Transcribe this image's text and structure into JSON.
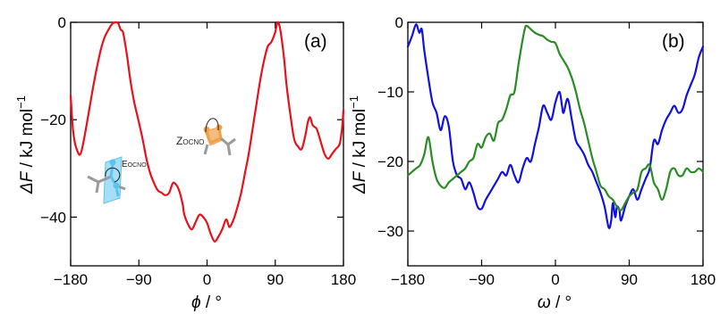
{
  "colors": {
    "red": "#e8101a",
    "blue": "#1010e0",
    "green": "#2a8a24",
    "mol_orange": "#f0a04b",
    "mol_blue": "#5cc2f0",
    "mol_grey": "#9a9a9a"
  },
  "icons": [
    "molecule-e-ocno-icon",
    "molecule-z-ocno-icon"
  ],
  "chart_data": [
    {
      "type": "line",
      "panel_label": "(a)",
      "xlabel_symbol": "ϕ",
      "xlabel_unit": " / °",
      "ylabel_symbol": "ΔF",
      "ylabel_unit": " / kJ mol",
      "ylabel_sup": "−1",
      "xlim": [
        -180,
        180
      ],
      "ylim": [
        -50,
        0
      ],
      "x_ticks": [
        {
          "v": -180,
          "l": "−180"
        },
        {
          "v": -90,
          "l": "−90"
        },
        {
          "v": 0,
          "l": "0"
        },
        {
          "v": 90,
          "l": "90"
        },
        {
          "v": 180,
          "l": "180"
        }
      ],
      "y_ticks": [
        {
          "v": 0,
          "l": "0"
        },
        {
          "v": -20,
          "l": "−20"
        },
        {
          "v": -40,
          "l": "−40"
        }
      ],
      "annotations": [
        {
          "main": "E",
          "sub": "OCNO"
        },
        {
          "main": "Z",
          "sub": "OCNO"
        }
      ],
      "series": [
        {
          "color": "#e8101a",
          "x": [
            -180,
            -177,
            -174,
            -171,
            -168,
            -165,
            -160,
            -155,
            -150,
            -145,
            -140,
            -135,
            -130,
            -125,
            -120,
            -117,
            -114,
            -111,
            -108,
            -105,
            -102,
            -99,
            -96,
            -93,
            -90,
            -85,
            -80,
            -75,
            -70,
            -65,
            -60,
            -55,
            -50,
            -45,
            -40,
            -37,
            -35,
            -32,
            -30,
            -25,
            -20,
            -15,
            -10,
            -5,
            0,
            5,
            10,
            15,
            20,
            25,
            28,
            30,
            35,
            40,
            45,
            50,
            55,
            60,
            65,
            70,
            75,
            80,
            85,
            90,
            93,
            96,
            99,
            102,
            105,
            110,
            115,
            120,
            125,
            130,
            133,
            136,
            139,
            142,
            145,
            150,
            155,
            160,
            165,
            170,
            175,
            178,
            180
          ],
          "y": [
            -15,
            -22,
            -25,
            -26.5,
            -27.2,
            -26,
            -22,
            -17.5,
            -13,
            -9,
            -5.5,
            -3,
            -1.5,
            -0.3,
            0,
            -0.3,
            -1.5,
            -2,
            -4.5,
            -7.5,
            -11,
            -14,
            -16.5,
            -18.5,
            -20.5,
            -24,
            -28,
            -31,
            -33,
            -34.5,
            -35,
            -35.5,
            -35,
            -33,
            -33.5,
            -34.5,
            -35.5,
            -37.5,
            -39.5,
            -41.5,
            -42.5,
            -41,
            -39.5,
            -40,
            -41.2,
            -43.5,
            -45,
            -44,
            -42.5,
            -40.5,
            -41.5,
            -42,
            -40.5,
            -38,
            -35,
            -31,
            -27,
            -22,
            -17,
            -12,
            -8,
            -5,
            -4,
            -2,
            0,
            -1,
            -4,
            -8,
            -13,
            -19,
            -24,
            -25.5,
            -26,
            -23,
            -20.5,
            -19.5,
            -21,
            -21.5,
            -22,
            -24.5,
            -27,
            -28,
            -27,
            -26,
            -25,
            -22,
            -18
          ]
        }
      ]
    },
    {
      "type": "line",
      "panel_label": "(b)",
      "xlabel_symbol": "ω",
      "xlabel_unit": " / °",
      "ylabel_symbol": "ΔF",
      "ylabel_unit": " / kJ mol",
      "ylabel_sup": "−1",
      "xlim": [
        -180,
        180
      ],
      "ylim": [
        -35,
        0
      ],
      "x_ticks": [
        {
          "v": -180,
          "l": "−180"
        },
        {
          "v": -90,
          "l": "−90"
        },
        {
          "v": 0,
          "l": "0"
        },
        {
          "v": 90,
          "l": "90"
        },
        {
          "v": 180,
          "l": "180"
        }
      ],
      "y_ticks": [
        {
          "v": 0,
          "l": "0"
        },
        {
          "v": -10,
          "l": "−10"
        },
        {
          "v": -20,
          "l": "−20"
        },
        {
          "v": -30,
          "l": "−30"
        }
      ],
      "series": [
        {
          "color": "#1010e0",
          "x": [
            -180,
            -175,
            -170,
            -166,
            -163,
            -160,
            -155,
            -150,
            -145,
            -140,
            -135,
            -130,
            -125,
            -120,
            -115,
            -110,
            -105,
            -100,
            -95,
            -90,
            -85,
            -80,
            -75,
            -70,
            -65,
            -60,
            -55,
            -50,
            -45,
            -40,
            -35,
            -30,
            -25,
            -20,
            -15,
            -10,
            -5,
            0,
            5,
            8,
            10,
            15,
            20,
            25,
            30,
            35,
            40,
            45,
            50,
            55,
            60,
            65,
            68,
            70,
            73,
            75,
            78,
            80,
            85,
            90,
            95,
            100,
            105,
            110,
            115,
            120,
            125,
            130,
            135,
            140,
            145,
            150,
            155,
            160,
            165,
            170,
            175,
            180
          ],
          "y": [
            -3.5,
            -2,
            -0.3,
            -1.5,
            -1,
            -4,
            -8,
            -11.5,
            -13,
            -15.5,
            -13.5,
            -15,
            -20,
            -22,
            -22.5,
            -24,
            -23,
            -24.5,
            -26.5,
            -26.8,
            -25.5,
            -24.5,
            -23.5,
            -22.5,
            -21.5,
            -22,
            -20.5,
            -22,
            -23,
            -21,
            -19.5,
            -20,
            -17.5,
            -15,
            -12,
            -13,
            -14,
            -11.5,
            -10,
            -12,
            -13,
            -11,
            -14,
            -17,
            -18,
            -19,
            -20.5,
            -21.5,
            -23,
            -24.5,
            -26.5,
            -29.5,
            -28.5,
            -26,
            -28,
            -26.5,
            -27,
            -28.5,
            -26.5,
            -25,
            -24,
            -25.5,
            -24,
            -22.5,
            -21,
            -17,
            -17.5,
            -15.5,
            -14,
            -13,
            -12,
            -13,
            -12.5,
            -10.5,
            -9,
            -7.5,
            -5,
            -3.5
          ]
        },
        {
          "color": "#2a8a24",
          "x": [
            -180,
            -175,
            -170,
            -165,
            -160,
            -155,
            -150,
            -145,
            -140,
            -135,
            -130,
            -125,
            -120,
            -115,
            -110,
            -105,
            -100,
            -95,
            -90,
            -85,
            -80,
            -75,
            -70,
            -65,
            -60,
            -55,
            -50,
            -45,
            -40,
            -37,
            -35,
            -30,
            -25,
            -20,
            -15,
            -10,
            -5,
            0,
            5,
            10,
            15,
            20,
            25,
            30,
            35,
            40,
            45,
            50,
            55,
            60,
            65,
            70,
            75,
            80,
            85,
            90,
            95,
            100,
            105,
            110,
            115,
            120,
            125,
            130,
            135,
            140,
            145,
            150,
            155,
            160,
            165,
            170,
            175,
            180
          ],
          "y": [
            -22,
            -21.5,
            -21,
            -20.5,
            -19,
            -16.5,
            -20,
            -22.5,
            -23.5,
            -23.8,
            -23,
            -22.5,
            -22,
            -21.5,
            -21,
            -20,
            -19.5,
            -17.5,
            -18,
            -16.5,
            -16,
            -17,
            -14.5,
            -14,
            -12.5,
            -10.5,
            -10,
            -6,
            -2.5,
            -0.8,
            -0.5,
            -1,
            -1.5,
            -1.8,
            -2,
            -2.5,
            -2.8,
            -3,
            -4.5,
            -5.5,
            -6.5,
            -8,
            -10,
            -12.5,
            -14.5,
            -17,
            -19.5,
            -21.5,
            -23.5,
            -24,
            -25,
            -25.5,
            -26.5,
            -27,
            -26,
            -25,
            -24.5,
            -24,
            -21.5,
            -21,
            -20.5,
            -23,
            -24,
            -25.5,
            -24,
            -21.5,
            -21,
            -22,
            -22,
            -21,
            -21.5,
            -21.5,
            -21,
            -21.5
          ]
        }
      ]
    }
  ]
}
